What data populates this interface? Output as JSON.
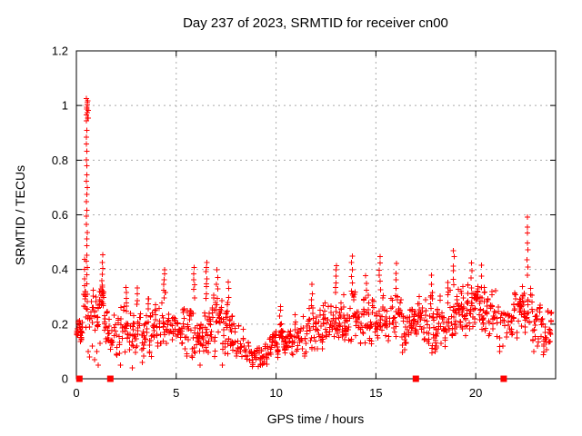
{
  "figure": {
    "background": "#ffffff",
    "frame_color": "#000000",
    "grid_color": "#ababab",
    "accent_color": "#ff0000"
  },
  "chart_data": {
    "type": "scatter",
    "title": "Day 237 of 2023, SRMTID for receiver cn00",
    "xlabel": "GPS time / hours",
    "ylabel": "SRMTID / TECUs",
    "xlim": [
      0,
      24
    ],
    "ylim": [
      0,
      1.2
    ],
    "xticks": [
      {
        "value": 0,
        "label": "0"
      },
      {
        "value": 5,
        "label": "5"
      },
      {
        "value": 10,
        "label": "10"
      },
      {
        "value": 15,
        "label": "15"
      },
      {
        "value": 20,
        "label": "20"
      }
    ],
    "yticks": [
      {
        "value": 0,
        "label": "0"
      },
      {
        "value": 0.2,
        "label": "0.2"
      },
      {
        "value": 0.4,
        "label": "0.4"
      },
      {
        "value": 0.6,
        "label": "0.6"
      },
      {
        "value": 0.8,
        "label": "0.8"
      },
      {
        "value": 1.0,
        "label": "1"
      },
      {
        "value": 1.2,
        "label": "1.2"
      }
    ],
    "grid": {
      "show": true,
      "style": "dashed"
    },
    "legend": "none",
    "render_seed": 1337,
    "series": [
      {
        "name": "srmtid-plus-scatter",
        "marker": "plus",
        "color": "#ff0000",
        "time_range": [
          0.03,
          23.8
        ],
        "epoch_step_hours": 0.06,
        "points_per_epoch_min": 2,
        "points_per_epoch_max": 5,
        "envelope_keyframes": [
          [
            0.0,
            0.19,
            0.05
          ],
          [
            0.25,
            0.2,
            0.06
          ],
          [
            0.45,
            0.27,
            0.08
          ],
          [
            0.7,
            0.26,
            0.09
          ],
          [
            1.0,
            0.24,
            0.09
          ],
          [
            1.3,
            0.27,
            0.09
          ],
          [
            1.6,
            0.16,
            0.07
          ],
          [
            2.0,
            0.17,
            0.08
          ],
          [
            2.5,
            0.18,
            0.09
          ],
          [
            3.0,
            0.18,
            0.08
          ],
          [
            3.5,
            0.19,
            0.09
          ],
          [
            4.0,
            0.18,
            0.08
          ],
          [
            4.4,
            0.21,
            0.1
          ],
          [
            5.0,
            0.17,
            0.07
          ],
          [
            5.5,
            0.17,
            0.08
          ],
          [
            6.0,
            0.19,
            0.09
          ],
          [
            6.5,
            0.17,
            0.08
          ],
          [
            7.0,
            0.2,
            0.1
          ],
          [
            7.5,
            0.18,
            0.08
          ],
          [
            8.0,
            0.16,
            0.07
          ],
          [
            8.5,
            0.12,
            0.05
          ],
          [
            9.0,
            0.09,
            0.04
          ],
          [
            9.5,
            0.1,
            0.04
          ],
          [
            10.0,
            0.13,
            0.05
          ],
          [
            10.5,
            0.15,
            0.06
          ],
          [
            11.0,
            0.17,
            0.07
          ],
          [
            11.5,
            0.18,
            0.08
          ],
          [
            12.0,
            0.19,
            0.08
          ],
          [
            12.5,
            0.2,
            0.08
          ],
          [
            13.0,
            0.21,
            0.09
          ],
          [
            13.5,
            0.22,
            0.08
          ],
          [
            14.0,
            0.23,
            0.08
          ],
          [
            14.5,
            0.22,
            0.08
          ],
          [
            15.0,
            0.24,
            0.09
          ],
          [
            15.5,
            0.23,
            0.08
          ],
          [
            16.0,
            0.22,
            0.09
          ],
          [
            16.5,
            0.2,
            0.08
          ],
          [
            17.0,
            0.19,
            0.08
          ],
          [
            17.5,
            0.2,
            0.09
          ],
          [
            18.0,
            0.21,
            0.09
          ],
          [
            18.5,
            0.23,
            0.09
          ],
          [
            19.0,
            0.25,
            0.09
          ],
          [
            19.5,
            0.27,
            0.09
          ],
          [
            20.0,
            0.27,
            0.09
          ],
          [
            20.5,
            0.26,
            0.09
          ],
          [
            21.0,
            0.23,
            0.09
          ],
          [
            21.3,
            0.17,
            0.07
          ],
          [
            21.7,
            0.2,
            0.08
          ],
          [
            22.0,
            0.24,
            0.09
          ],
          [
            22.4,
            0.27,
            0.08
          ],
          [
            22.7,
            0.24,
            0.09
          ],
          [
            23.0,
            0.2,
            0.08
          ],
          [
            23.4,
            0.16,
            0.07
          ],
          [
            23.8,
            0.19,
            0.06
          ]
        ],
        "spike_strands": [
          [
            0.42,
            0.3,
            0.44,
            5
          ],
          [
            0.52,
            0.35,
            1.02,
            26
          ],
          [
            0.56,
            0.95,
            1.02,
            8
          ],
          [
            1.3,
            0.3,
            0.45,
            8
          ],
          [
            2.5,
            0.28,
            0.34,
            4
          ],
          [
            3.05,
            0.27,
            0.33,
            4
          ],
          [
            4.4,
            0.3,
            0.4,
            6
          ],
          [
            5.9,
            0.3,
            0.41,
            6
          ],
          [
            6.5,
            0.3,
            0.42,
            8
          ],
          [
            7.05,
            0.3,
            0.4,
            5
          ],
          [
            7.6,
            0.28,
            0.35,
            4
          ],
          [
            10.2,
            0.2,
            0.27,
            4
          ],
          [
            11.8,
            0.27,
            0.34,
            4
          ],
          [
            13.0,
            0.31,
            0.42,
            6
          ],
          [
            13.8,
            0.32,
            0.45,
            6
          ],
          [
            14.5,
            0.3,
            0.38,
            4
          ],
          [
            15.2,
            0.33,
            0.45,
            6
          ],
          [
            16.0,
            0.3,
            0.42,
            5
          ],
          [
            17.8,
            0.29,
            0.38,
            4
          ],
          [
            18.9,
            0.34,
            0.47,
            6
          ],
          [
            19.8,
            0.31,
            0.42,
            5
          ],
          [
            20.3,
            0.3,
            0.41,
            4
          ],
          [
            22.6,
            0.38,
            0.59,
            8
          ]
        ],
        "extra_points": [
          [
            0.6,
            0.1
          ],
          [
            0.66,
            0.08
          ],
          [
            0.8,
            0.12
          ],
          [
            0.92,
            0.07
          ],
          [
            1.02,
            0.1
          ],
          [
            1.1,
            0.05
          ],
          [
            1.18,
            0.13
          ],
          [
            2.2,
            0.05
          ],
          [
            2.8,
            0.04
          ],
          [
            3.3,
            0.06
          ],
          [
            6.2,
            0.05
          ],
          [
            7.3,
            0.05
          ],
          [
            9.1,
            0.045
          ],
          [
            21.2,
            0.1
          ],
          [
            21.35,
            0.12
          ],
          [
            22.9,
            0.1
          ],
          [
            23.1,
            0.12
          ]
        ]
      },
      {
        "name": "zero-value-flags",
        "marker": "filled-square",
        "color": "#ff0000",
        "points": [
          [
            0.15,
            0
          ],
          [
            1.7,
            0
          ],
          [
            17.0,
            0
          ],
          [
            21.4,
            0
          ]
        ]
      }
    ]
  }
}
